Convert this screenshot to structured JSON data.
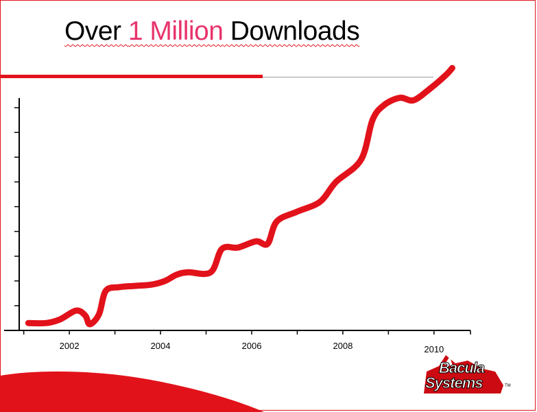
{
  "slide": {
    "title_part1": "Over ",
    "title_highlight": "1 Million",
    "title_part2": " Downloads"
  },
  "logo": {
    "line1": "Bacula",
    "line2": "Systems",
    "tm": "TM"
  },
  "colors": {
    "accent": "#e2121b",
    "highlight": "#e8336b"
  },
  "chart_data": {
    "type": "line",
    "title": "Over 1 Million Downloads",
    "xlabel": "",
    "ylabel": "",
    "grid": false,
    "xlim": [
      2000.9,
      2010.8
    ],
    "ylim": [
      0,
      1000000
    ],
    "x_ticks": [
      2001,
      2002,
      2003,
      2004,
      2005,
      2006,
      2007,
      2008,
      2009,
      2010,
      2010.8
    ],
    "y_ticks": [
      0,
      100000,
      200000,
      300000,
      400000,
      500000,
      600000,
      700000,
      800000,
      900000
    ],
    "tick_labels": [
      {
        "x": 2002,
        "label": "2002"
      },
      {
        "x": 2004,
        "label": "2004"
      },
      {
        "x": 2006,
        "label": "2006"
      },
      {
        "x": 2008,
        "label": "2008"
      },
      {
        "x": 2010,
        "label": "2010"
      }
    ],
    "series": [
      {
        "values": [
          [
            2001.1,
            30000
          ],
          [
            2001.5,
            30000
          ],
          [
            2001.8,
            45000
          ],
          [
            2002.15,
            80000
          ],
          [
            2002.35,
            60000
          ],
          [
            2002.45,
            25000
          ],
          [
            2002.65,
            65000
          ],
          [
            2002.8,
            160000
          ],
          [
            2003.1,
            175000
          ],
          [
            2003.45,
            180000
          ],
          [
            2003.8,
            185000
          ],
          [
            2004.1,
            200000
          ],
          [
            2004.35,
            225000
          ],
          [
            2004.6,
            235000
          ],
          [
            2005.1,
            235000
          ],
          [
            2005.35,
            330000
          ],
          [
            2005.7,
            335000
          ],
          [
            2006.1,
            360000
          ],
          [
            2006.35,
            350000
          ],
          [
            2006.55,
            440000
          ],
          [
            2007.0,
            480000
          ],
          [
            2007.5,
            520000
          ],
          [
            2007.85,
            600000
          ],
          [
            2008.4,
            690000
          ],
          [
            2008.65,
            850000
          ],
          [
            2008.9,
            910000
          ],
          [
            2009.25,
            940000
          ],
          [
            2009.55,
            930000
          ],
          [
            2009.9,
            975000
          ],
          [
            2010.25,
            1030000
          ],
          [
            2010.4,
            1060000
          ]
        ]
      }
    ]
  }
}
